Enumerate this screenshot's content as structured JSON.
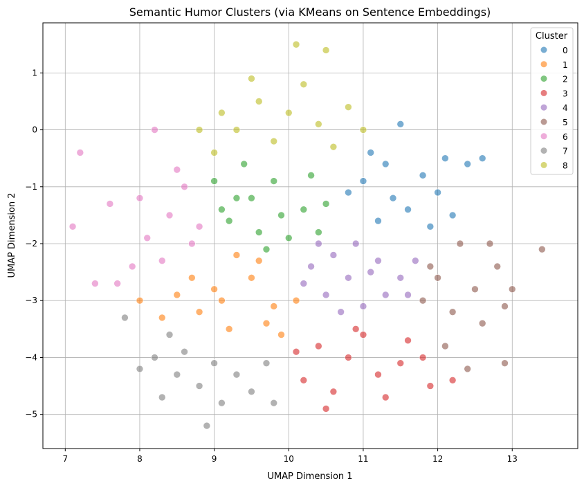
{
  "chart_data": {
    "type": "scatter",
    "title": "Semantic Humor Clusters (via KMeans on Sentence Embeddings)",
    "xlabel": "UMAP Dimension 1",
    "ylabel": "UMAP Dimension 2",
    "xlim": [
      6.7,
      13.88
    ],
    "ylim": [
      -5.6,
      1.88
    ],
    "xticks": [
      "7",
      "8",
      "9",
      "10",
      "11",
      "12",
      "13"
    ],
    "yticks": [
      "1",
      "0",
      "−1",
      "−2",
      "−3",
      "−4",
      "−5"
    ],
    "xtick_values": [
      7,
      8,
      9,
      10,
      11,
      12,
      13
    ],
    "ytick_values": [
      1,
      0,
      -1,
      -2,
      -3,
      -4,
      -5
    ],
    "grid": true,
    "legend": {
      "title": "Cluster",
      "placement": "top-right"
    },
    "series": [
      {
        "name": "0",
        "color": "#1f77b4",
        "points": [
          [
            11.0,
            -0.9
          ],
          [
            11.4,
            -1.2
          ],
          [
            11.8,
            -0.8
          ],
          [
            12.1,
            -0.5
          ],
          [
            11.2,
            -1.6
          ],
          [
            11.6,
            -1.4
          ],
          [
            12.0,
            -1.1
          ],
          [
            12.4,
            -0.6
          ],
          [
            11.1,
            -0.4
          ],
          [
            11.5,
            0.1
          ],
          [
            12.2,
            -1.5
          ],
          [
            12.6,
            -0.5
          ],
          [
            10.8,
            -1.1
          ],
          [
            11.3,
            -0.6
          ],
          [
            11.9,
            -1.7
          ]
        ]
      },
      {
        "name": "1",
        "color": "#ff7f0e",
        "points": [
          [
            9.0,
            -2.8
          ],
          [
            9.5,
            -2.6
          ],
          [
            9.8,
            -3.1
          ],
          [
            8.8,
            -3.2
          ],
          [
            9.2,
            -3.5
          ],
          [
            9.6,
            -2.3
          ],
          [
            8.5,
            -2.9
          ],
          [
            8.0,
            -3.0
          ],
          [
            9.9,
            -3.6
          ],
          [
            9.3,
            -2.2
          ],
          [
            8.7,
            -2.6
          ],
          [
            9.7,
            -3.4
          ],
          [
            10.1,
            -3.0
          ],
          [
            8.3,
            -3.3
          ],
          [
            9.1,
            -3.0
          ]
        ]
      },
      {
        "name": "2",
        "color": "#2ca02c",
        "points": [
          [
            9.5,
            -1.2
          ],
          [
            9.8,
            -0.9
          ],
          [
            10.2,
            -1.4
          ],
          [
            9.2,
            -1.6
          ],
          [
            9.6,
            -1.8
          ],
          [
            10.3,
            -0.8
          ],
          [
            9.0,
            -0.9
          ],
          [
            9.4,
            -0.6
          ],
          [
            10.0,
            -1.9
          ],
          [
            10.5,
            -1.3
          ],
          [
            9.3,
            -1.2
          ],
          [
            9.9,
            -1.5
          ],
          [
            10.4,
            -1.8
          ],
          [
            9.1,
            -1.4
          ],
          [
            9.7,
            -2.1
          ]
        ]
      },
      {
        "name": "3",
        "color": "#d62728",
        "points": [
          [
            10.8,
            -4.0
          ],
          [
            10.4,
            -3.8
          ],
          [
            11.2,
            -4.3
          ],
          [
            10.6,
            -4.6
          ],
          [
            11.0,
            -3.6
          ],
          [
            11.5,
            -4.1
          ],
          [
            10.2,
            -4.4
          ],
          [
            10.5,
            -4.9
          ],
          [
            11.3,
            -4.7
          ],
          [
            11.8,
            -4.0
          ],
          [
            10.9,
            -3.5
          ],
          [
            10.1,
            -3.9
          ],
          [
            11.6,
            -3.7
          ],
          [
            11.9,
            -4.5
          ],
          [
            12.2,
            -4.4
          ]
        ]
      },
      {
        "name": "4",
        "color": "#9467bd",
        "points": [
          [
            10.8,
            -2.6
          ],
          [
            11.2,
            -2.3
          ],
          [
            10.5,
            -2.9
          ],
          [
            11.0,
            -3.1
          ],
          [
            11.5,
            -2.6
          ],
          [
            10.3,
            -2.4
          ],
          [
            10.9,
            -2.0
          ],
          [
            11.3,
            -2.9
          ],
          [
            10.6,
            -2.2
          ],
          [
            11.7,
            -2.3
          ],
          [
            10.2,
            -2.7
          ],
          [
            10.7,
            -3.2
          ],
          [
            11.1,
            -2.5
          ],
          [
            11.6,
            -2.9
          ],
          [
            10.4,
            -2.0
          ]
        ]
      },
      {
        "name": "5",
        "color": "#8c564b",
        "points": [
          [
            12.5,
            -2.8
          ],
          [
            12.2,
            -3.2
          ],
          [
            12.8,
            -2.4
          ],
          [
            12.0,
            -2.6
          ],
          [
            12.6,
            -3.4
          ],
          [
            11.8,
            -3.0
          ],
          [
            13.0,
            -2.8
          ],
          [
            12.3,
            -2.0
          ],
          [
            12.9,
            -3.1
          ],
          [
            12.1,
            -3.8
          ],
          [
            12.7,
            -2.0
          ],
          [
            13.4,
            -2.1
          ],
          [
            12.4,
            -4.2
          ],
          [
            12.9,
            -4.1
          ],
          [
            11.9,
            -2.4
          ]
        ]
      },
      {
        "name": "6",
        "color": "#e377c2",
        "points": [
          [
            8.4,
            -1.5
          ],
          [
            8.1,
            -1.9
          ],
          [
            8.6,
            -1.0
          ],
          [
            8.0,
            -1.2
          ],
          [
            8.3,
            -2.3
          ],
          [
            8.8,
            -1.7
          ],
          [
            7.9,
            -2.4
          ],
          [
            8.5,
            -0.7
          ],
          [
            7.6,
            -1.3
          ],
          [
            7.2,
            -0.4
          ],
          [
            7.1,
            -1.7
          ],
          [
            8.2,
            0.0
          ],
          [
            7.7,
            -2.7
          ],
          [
            8.7,
            -2.0
          ],
          [
            7.4,
            -2.7
          ]
        ]
      },
      {
        "name": "7",
        "color": "#7f7f7f",
        "points": [
          [
            8.5,
            -4.3
          ],
          [
            9.0,
            -4.1
          ],
          [
            8.3,
            -4.7
          ],
          [
            8.8,
            -4.5
          ],
          [
            9.3,
            -4.3
          ],
          [
            8.0,
            -4.2
          ],
          [
            9.5,
            -4.6
          ],
          [
            8.6,
            -3.9
          ],
          [
            9.1,
            -4.8
          ],
          [
            8.2,
            -4.0
          ],
          [
            9.7,
            -4.1
          ],
          [
            8.9,
            -5.2
          ],
          [
            9.8,
            -4.8
          ],
          [
            7.8,
            -3.3
          ],
          [
            8.4,
            -3.6
          ]
        ]
      },
      {
        "name": "8",
        "color": "#bcbd22",
        "points": [
          [
            10.0,
            0.3
          ],
          [
            9.6,
            0.5
          ],
          [
            10.4,
            0.1
          ],
          [
            9.3,
            0.0
          ],
          [
            10.2,
            0.8
          ],
          [
            9.8,
            -0.2
          ],
          [
            10.6,
            -0.3
          ],
          [
            9.1,
            0.3
          ],
          [
            10.8,
            0.4
          ],
          [
            9.5,
            0.9
          ],
          [
            10.1,
            1.5
          ],
          [
            9.0,
            -0.4
          ],
          [
            11.0,
            0.0
          ],
          [
            10.5,
            1.4
          ],
          [
            8.8,
            0.0
          ]
        ]
      }
    ]
  }
}
